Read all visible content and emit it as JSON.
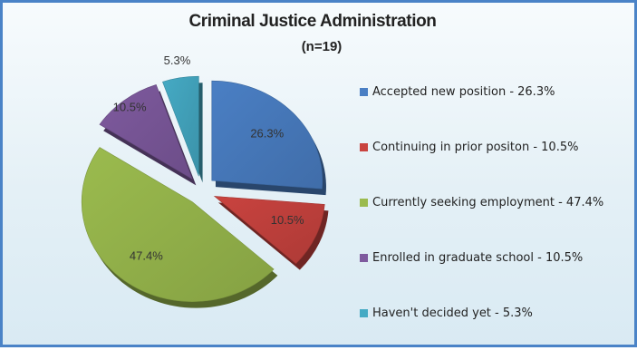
{
  "chart_data": {
    "type": "pie",
    "title": "Criminal Justice Administration",
    "subtitle": "(n=19)",
    "legend_position": "right",
    "slices": [
      {
        "label": "Accepted new position - 26.3%",
        "value": 26.3,
        "data_label": "26.3%",
        "color": "#4a7fc4"
      },
      {
        "label": "Continuing in prior positon - 10.5%",
        "value": 10.5,
        "data_label": "10.5%",
        "color": "#c9433f"
      },
      {
        "label": "Currently seeking employment - 47.4%",
        "value": 47.4,
        "data_label": "47.4%",
        "color": "#9bbb4e"
      },
      {
        "label": "Enrolled in graduate school - 10.5%",
        "value": 10.5,
        "data_label": "10.5%",
        "color": "#7e5a9e"
      },
      {
        "label": "Haven't decided yet - 5.3%",
        "value": 5.3,
        "data_label": "5.3%",
        "color": "#45aac4"
      }
    ]
  }
}
